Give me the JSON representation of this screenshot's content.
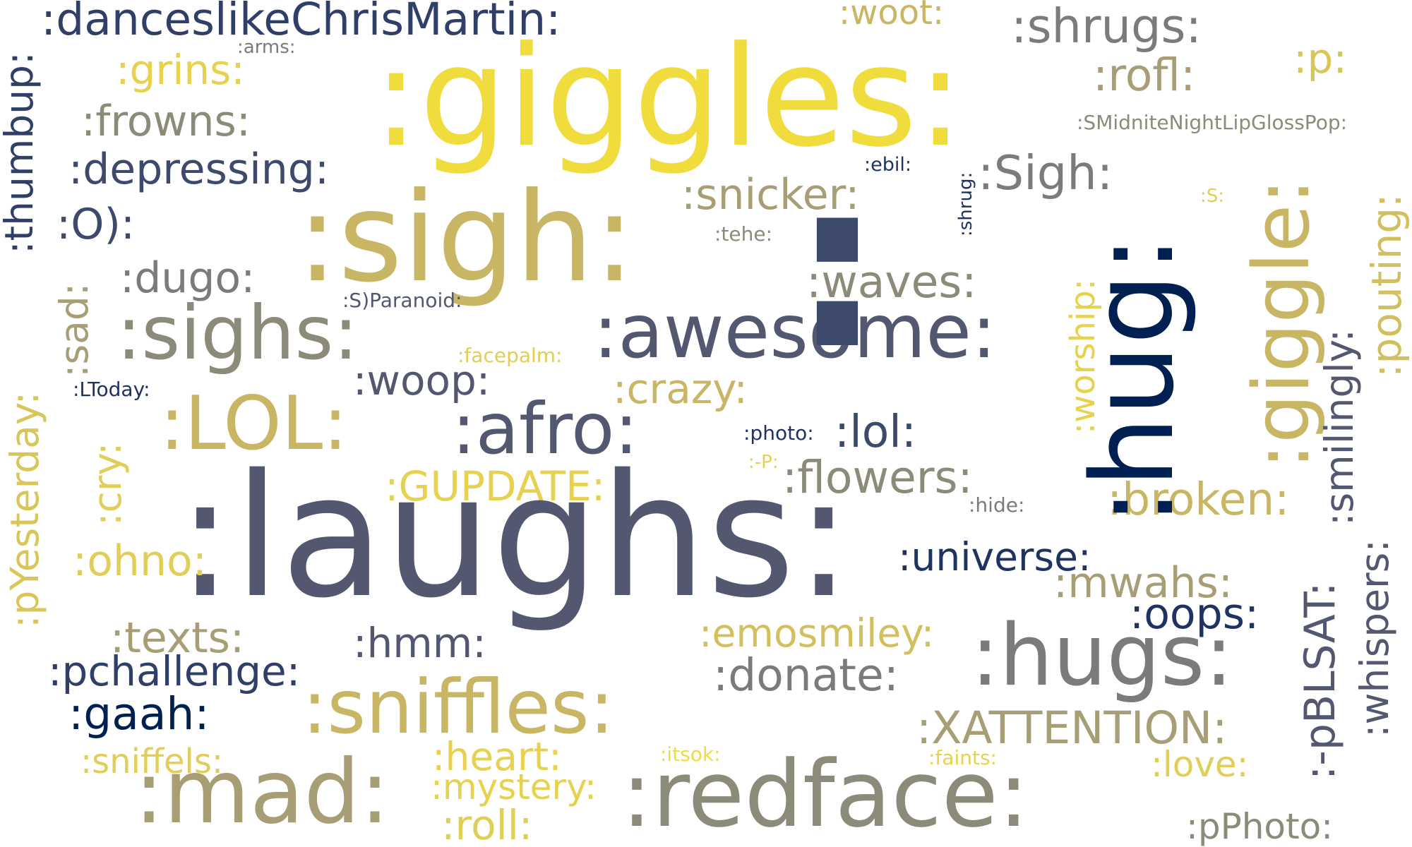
{
  "palette": {
    "yellow": "#f0dc3c",
    "gold": "#c9b665",
    "khaki": "#a79e76",
    "olive": "#8c8a78",
    "gray": "#7b7b79",
    "slate": "#535870",
    "navy": "#3e4a6c",
    "darknavy": "#1f3363",
    "deepnavy": "#002052"
  },
  "words": [
    {
      "text": ":danceslikeChrisMartin:",
      "color": "#2f3f67"
    },
    {
      "text": ":woot:",
      "color": "#c9b665"
    },
    {
      "text": ":shrugs:",
      "color": "#7b7b79"
    },
    {
      "text": ":arms:",
      "color": "#7b7b79"
    },
    {
      "text": ":grins:",
      "color": "#e6d24e"
    },
    {
      "text": ":giggles:",
      "color": "#f0dc3c"
    },
    {
      "text": ":rofl:",
      "color": "#a79e76"
    },
    {
      "text": ":p:",
      "color": "#d8c658"
    },
    {
      "text": ":thumbup:",
      "color": "#2f3f67"
    },
    {
      "text": ":frowns:",
      "color": "#8c8a78"
    },
    {
      "text": ":SMidniteNightLipGlossPop:",
      "color": "#8c8a78"
    },
    {
      "text": ":depressing:",
      "color": "#3e4a6c"
    },
    {
      "text": ":ebil:",
      "color": "#1f3363"
    },
    {
      "text": ":shrug:",
      "color": "#1f3363"
    },
    {
      "text": ":Sigh:",
      "color": "#7b7b79"
    },
    {
      "text": ":giggle:",
      "color": "#c9b665"
    },
    {
      "text": ":sigh:",
      "color": "#c9b665"
    },
    {
      "text": ":snicker:",
      "color": "#a79e76"
    },
    {
      "text": ":S:",
      "color": "#e0ce58"
    },
    {
      "text": ":pouting:",
      "color": "#d2c060"
    },
    {
      "text": ":O):",
      "color": "#3e4a6c"
    },
    {
      "text": ":tehe:",
      "color": "#8c8a78"
    },
    {
      "text": ":hug:",
      "color": "#002052"
    },
    {
      "text": ":sad:",
      "color": "#a79e76"
    },
    {
      "text": ":dugo:",
      "color": "#7b7b79"
    },
    {
      "text": ":waves:",
      "color": "#8c8a78"
    },
    {
      "text": ":smilingly:",
      "color": "#535870"
    },
    {
      "text": ":S)Paranoid:",
      "color": "#535870"
    },
    {
      "text": ":worship:",
      "color": "#e6d24e"
    },
    {
      "text": ":pYesterday:",
      "color": "#d8c658"
    },
    {
      "text": ":sighs:",
      "color": "#8c8a78"
    },
    {
      "text": ":awesome:",
      "color": "#535870"
    },
    {
      "text": ":facepalm:",
      "color": "#e0ce58"
    },
    {
      "text": ":woop:",
      "color": "#535870"
    },
    {
      "text": ":LToday:",
      "color": "#1f3363"
    },
    {
      "text": ":crazy:",
      "color": "#c9b665"
    },
    {
      "text": ":LOL:",
      "color": "#c9b665"
    },
    {
      "text": ":afro:",
      "color": "#535870"
    },
    {
      "text": ":cry:",
      "color": "#e0ce58"
    },
    {
      "text": ":photo:",
      "color": "#1f3363"
    },
    {
      "text": ":lol:",
      "color": "#3e4a6c"
    },
    {
      "text": ":-P:",
      "color": "#e6d24e"
    },
    {
      "text": ":flowers:",
      "color": "#8c8a78"
    },
    {
      "text": ":GUPDATE:",
      "color": "#e6d24e"
    },
    {
      "text": ":broken:",
      "color": "#c9b665"
    },
    {
      "text": ":whispers:",
      "color": "#535870"
    },
    {
      "text": ":hide:",
      "color": "#7b7b79"
    },
    {
      "text": ":laughs:",
      "color": "#535870"
    },
    {
      "text": ":ohno:",
      "color": "#e0ce58"
    },
    {
      "text": ":universe:",
      "color": "#1f3363"
    },
    {
      "text": ":mwahs:",
      "color": "#a79e76"
    },
    {
      "text": ":oops:",
      "color": "#1f3363"
    },
    {
      "text": ":-pBLSAT:",
      "color": "#535870"
    },
    {
      "text": ":texts:",
      "color": "#a79e76"
    },
    {
      "text": ":hmm:",
      "color": "#535870"
    },
    {
      "text": ":emosmiley:",
      "color": "#d2c060"
    },
    {
      "text": ":pchallenge:",
      "color": "#2f3f67"
    },
    {
      "text": ":hugs:",
      "color": "#7b7b79"
    },
    {
      "text": ":donate:",
      "color": "#7b7b79"
    },
    {
      "text": ":gaah:",
      "color": "#002052"
    },
    {
      "text": ":sniffles:",
      "color": "#c9b665"
    },
    {
      "text": ":XATTENTION:",
      "color": "#a79e76"
    },
    {
      "text": ":sniffels:",
      "color": "#e0ce58"
    },
    {
      "text": ":heart:",
      "color": "#e6d24e"
    },
    {
      "text": ":itsok:",
      "color": "#f0dc3c"
    },
    {
      "text": ":faints:",
      "color": "#e6d24e"
    },
    {
      "text": ":love:",
      "color": "#e0ce58"
    },
    {
      "text": ":mystery:",
      "color": "#e6d24e"
    },
    {
      "text": ":mad:",
      "color": "#a79e76"
    },
    {
      "text": ":redface:",
      "color": "#8c8a78"
    },
    {
      "text": ":roll:",
      "color": "#e0ce58"
    },
    {
      "text": ":pPhoto:",
      "color": "#8c8a78"
    },
    {
      "text": ":",
      "color": "#3e4a6c"
    }
  ]
}
